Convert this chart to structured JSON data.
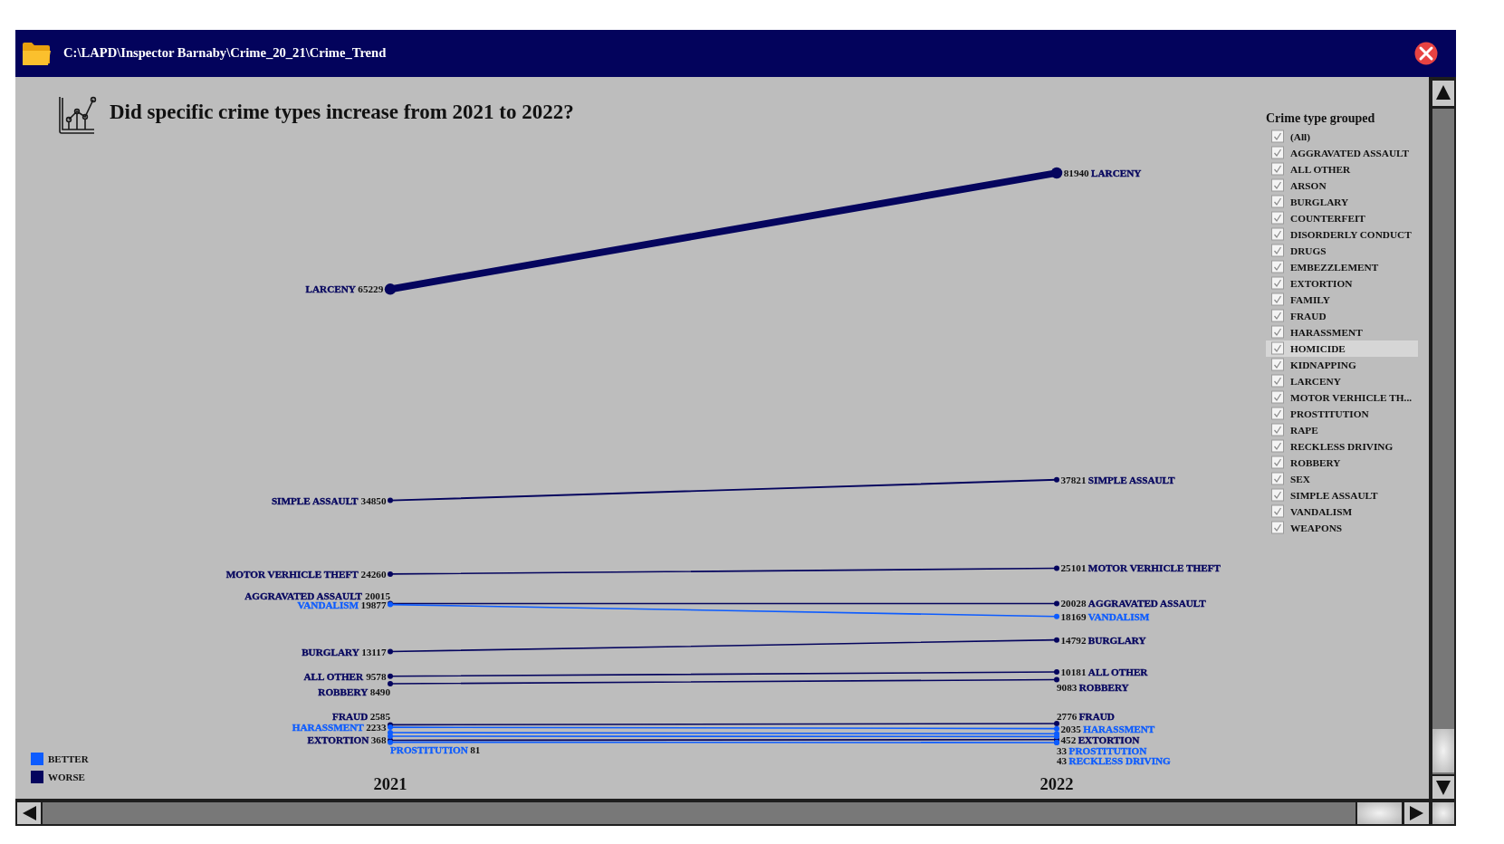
{
  "chart_data": [
    {
      "type": "line",
      "title": "Did specific crime types increase from 2021 to 2022?",
      "annotations": [
        "C:\\LAPD\\Inspector Barnaby\\Crime_20_21\\Crime_Trend"
      ],
      "categories": [
        "2021",
        "2022"
      ],
      "marker": "circle",
      "legend": "bottom left",
      "series": [
        {
          "name": "LARCENY",
          "color": "#05055e",
          "values": [
            65229,
            81940
          ],
          "value_labels": [
            "65229",
            "81940"
          ]
        },
        {
          "name": "SIMPLE ASSAULT",
          "color": "#05055e",
          "values": [
            34850,
            37821
          ],
          "value_labels": [
            "34850",
            "37821"
          ]
        },
        {
          "name": "MOTOR VERHICLE THEFT",
          "color": "#05055e",
          "values": [
            24260,
            25101
          ],
          "value_labels": [
            "24260",
            "25101"
          ]
        },
        {
          "name": "AGGRAVATED ASSAULT",
          "color": "#05055e",
          "values": [
            20015,
            20028
          ],
          "value_labels": [
            "20015",
            "20028"
          ]
        },
        {
          "name": "VANDALISM",
          "color": "#0d5cff",
          "values": [
            19877,
            18169
          ],
          "value_labels": [
            "19877",
            "18169"
          ]
        },
        {
          "name": "BURGLARY",
          "color": "#05055e",
          "values": [
            13117,
            14792
          ],
          "value_labels": [
            "13117",
            "14792"
          ]
        },
        {
          "name": "ALL OTHER",
          "color": "#05055e",
          "values": [
            9578,
            10181
          ],
          "value_labels": [
            "9578",
            "10181"
          ]
        },
        {
          "name": "ROBBERY",
          "color": "#05055e",
          "values": [
            8490,
            9083
          ],
          "value_labels": [
            "8490",
            "9083"
          ]
        },
        {
          "name": "FRAUD",
          "color": "#05055e",
          "values": [
            2585,
            2776
          ],
          "value_labels": [
            "2585",
            "2776"
          ]
        },
        {
          "name": "HARASSMENT",
          "color": "#0d5cff",
          "values": [
            2233,
            2035
          ],
          "value_labels": [
            "2233",
            "2035"
          ]
        },
        {
          "name": "EXTORTION",
          "color": "#05055e",
          "values": [
            368,
            452
          ],
          "value_labels": [
            "368",
            "452"
          ]
        },
        {
          "name": "PROSTITUTION",
          "color": "#0d5cff",
          "values": [
            81,
            33
          ],
          "value_labels": [
            "81",
            "33"
          ]
        },
        {
          "name": "RECKLESS DRIVING",
          "color": "#0d5cff",
          "values": [
            null,
            43
          ],
          "value_labels": [
            null,
            "43"
          ]
        },
        {
          "color": "#0d5cff",
          "values": [
            1470,
            1300
          ]
        },
        {
          "color": "#0d5cff",
          "values": [
            950,
            900
          ]
        },
        {
          "name": "BETTER",
          "color": "#0d5cff",
          "values": [
            null,
            null
          ]
        },
        {
          "name": "WORSE",
          "color": "#05055e",
          "values": [
            null,
            null
          ]
        }
      ]
    },
    {
      "type": "other",
      "title": "Crime type grouped",
      "annotations": [
        "(All)",
        "AGGRAVATED ASSAULT",
        "ALL OTHER",
        "ARSON",
        "BURGLARY",
        "COUNTERFEIT",
        "DISORDERLY CONDUCT",
        "DRUGS",
        "EMBEZZLEMENT",
        "EXTORTION",
        "FAMILY",
        "FRAUD",
        "HARASSMENT",
        "HOMICIDE",
        "KIDNAPPING",
        "LARCENY",
        "MOTOR VERHICLE TH...",
        "PROSTITUTION",
        "RAPE",
        "RECKLESS DRIVING",
        "ROBBERY",
        "SEX",
        "SIMPLE ASSAULT",
        "VANDALISM",
        "WEAPONS"
      ]
    }
  ]
}
